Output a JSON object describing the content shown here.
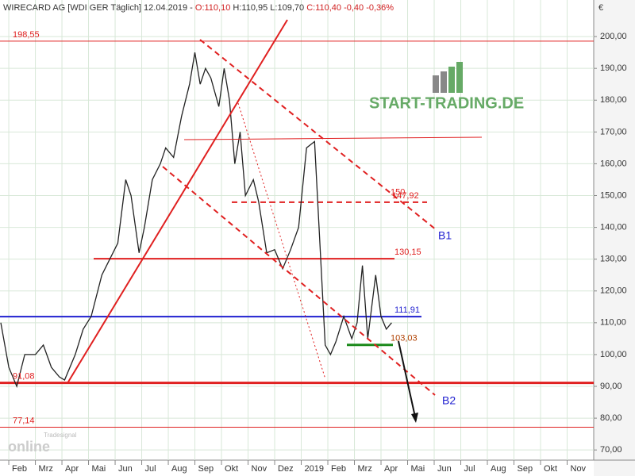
{
  "chart_data": {
    "type": "line",
    "title_parts": [
      "WIRECARD AG [WDI GER  Täglich] 12.04.2019 -",
      "O:110,10",
      "H:110,95",
      "L:109,70",
      "C:110,40 -0,40 -0,36%"
    ],
    "currency": "€",
    "logo": "START-TRADING.DE",
    "watermark": [
      "Tradesignal",
      "online"
    ],
    "xlim": [
      -0.33,
      22
    ],
    "xticks": [
      {
        "value": 0,
        "label": "Feb"
      },
      {
        "value": 1,
        "label": "Mrz"
      },
      {
        "value": 2,
        "label": "Apr"
      },
      {
        "value": 3,
        "label": "Mai"
      },
      {
        "value": 4,
        "label": "Jun"
      },
      {
        "value": 5,
        "label": "Jul"
      },
      {
        "value": 6,
        "label": "Aug"
      },
      {
        "value": 7,
        "label": "Sep"
      },
      {
        "value": 8,
        "label": "Okt"
      },
      {
        "value": 9,
        "label": "Nov"
      },
      {
        "value": 10,
        "label": "Dez"
      },
      {
        "value": 11,
        "label": "2019"
      },
      {
        "value": 12,
        "label": "Feb"
      },
      {
        "value": 13,
        "label": "Mrz"
      },
      {
        "value": 14,
        "label": "Apr"
      },
      {
        "value": 15,
        "label": "Mai"
      },
      {
        "value": 16,
        "label": "Jun"
      },
      {
        "value": 17,
        "label": "Jul"
      },
      {
        "value": 18,
        "label": "Aug"
      },
      {
        "value": 19,
        "label": "Sep"
      },
      {
        "value": 20,
        "label": "Okt"
      },
      {
        "value": 21,
        "label": "Nov"
      }
    ],
    "ylim": [
      66.8,
      211.5
    ],
    "yticks": [
      {
        "value": 70,
        "label": "70,00"
      },
      {
        "value": 80,
        "label": "80,00"
      },
      {
        "value": 90,
        "label": "90,00"
      },
      {
        "value": 100,
        "label": "100,00"
      },
      {
        "value": 110,
        "label": "110,00"
      },
      {
        "value": 120,
        "label": "120,00"
      },
      {
        "value": 130,
        "label": "130,00"
      },
      {
        "value": 140,
        "label": "140,00"
      },
      {
        "value": 150,
        "label": "150,00"
      },
      {
        "value": 160,
        "label": "160,00"
      },
      {
        "value": 170,
        "label": "170,00"
      },
      {
        "value": 180,
        "label": "180,00"
      },
      {
        "value": 190,
        "label": "190,00"
      },
      {
        "value": 200,
        "label": "200,00"
      }
    ],
    "grid": true,
    "series": [
      {
        "color": "#222222",
        "x": [
          -0.3,
          0,
          0.3,
          0.6,
          1,
          1.3,
          1.6,
          1.9,
          2.1,
          2.5,
          2.8,
          3.1,
          3.5,
          3.8,
          4.1,
          4.4,
          4.6,
          4.9,
          5.1,
          5.4,
          5.7,
          5.9,
          6.2,
          6.5,
          6.8,
          7,
          7.2,
          7.4,
          7.6,
          7.9,
          8.1,
          8.3,
          8.5,
          8.7,
          8.9,
          9.2,
          9.4,
          9.7,
          10,
          10.3,
          10.6,
          10.9,
          11.2,
          11.5,
          11.7,
          11.9,
          12.1,
          12.3,
          12.6,
          12.9,
          13.1,
          13.3,
          13.5,
          13.8,
          14,
          14.2,
          14.4
        ],
        "values": [
          110,
          96,
          90,
          100,
          100,
          103,
          96,
          93,
          92,
          100,
          108,
          112,
          125,
          130,
          135,
          155,
          150,
          132,
          140,
          155,
          160,
          165,
          162,
          175,
          185,
          195,
          185,
          190,
          187,
          178,
          190,
          180,
          160,
          170,
          150,
          155,
          148,
          132,
          133,
          127,
          133,
          140,
          165,
          167,
          135,
          103,
          100,
          104,
          112,
          105,
          110,
          128,
          105,
          125,
          112,
          108,
          110
        ]
      }
    ],
    "levels": [
      {
        "value": 198.55,
        "label": "198,55",
        "color": "#e02020"
      },
      {
        "value": 147.92,
        "label": "147,92",
        "color": "#e02020"
      },
      {
        "value": 130.15,
        "label": "130,15",
        "color": "#e02020"
      },
      {
        "value": 111.91,
        "label": "111,91",
        "color": "#2020d0"
      },
      {
        "value": 103.03,
        "label": "103,03",
        "color": "#b04000"
      },
      {
        "value": 91.08,
        "label": "91,08",
        "color": "#e02020"
      },
      {
        "value": 77.14,
        "label": "77,14",
        "color": "#e02020"
      }
    ],
    "annotations": [
      {
        "value": 150,
        "label": "150"
      }
    ],
    "channels": [
      "B1",
      "B2"
    ]
  }
}
